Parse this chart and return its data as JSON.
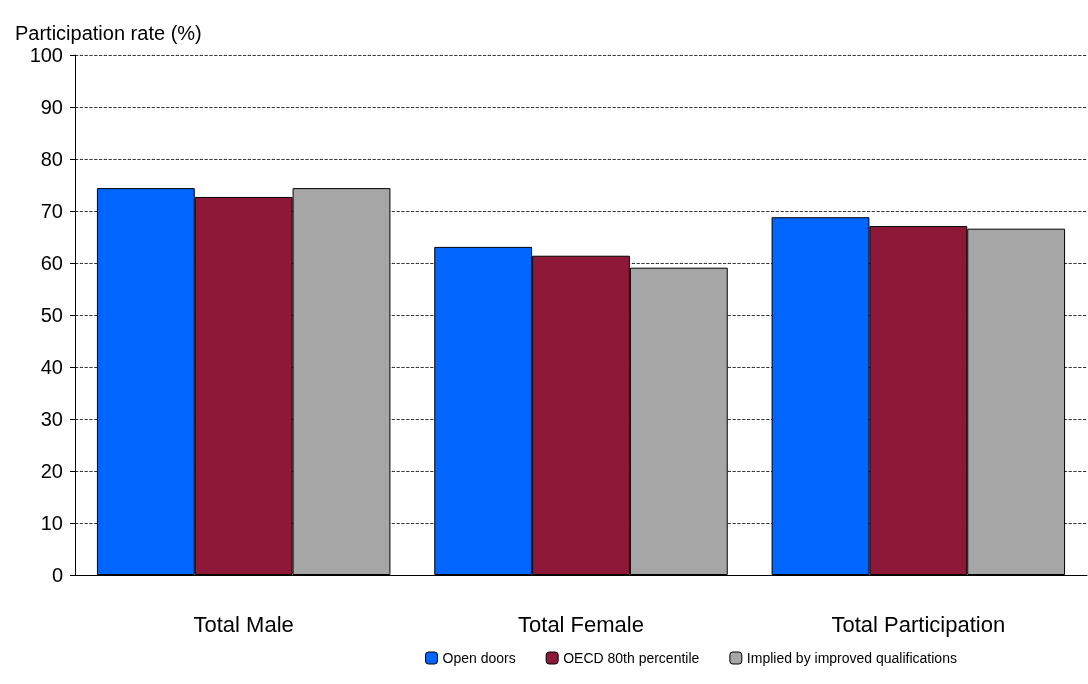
{
  "chart_data": {
    "type": "bar",
    "ylabel": "Participation rate (%)",
    "categories": [
      "Total Male",
      "Total Female",
      "Total Participation"
    ],
    "series": [
      {
        "name": "Open doors",
        "color": "#0066ff",
        "values": [
          74.4,
          63.1,
          68.8
        ]
      },
      {
        "name": "OECD 80th percentile",
        "color": "#8e1838",
        "values": [
          72.7,
          61.4,
          67.1
        ]
      },
      {
        "name": "Implied by improved qualifications",
        "color": "#a6a6a6",
        "values": [
          74.4,
          59.1,
          66.6
        ]
      }
    ],
    "ylim": [
      0,
      100
    ],
    "yticks": [
      0,
      10,
      20,
      30,
      40,
      50,
      60,
      70,
      80,
      90,
      100
    ],
    "grid": "y",
    "legend": "bottom"
  }
}
